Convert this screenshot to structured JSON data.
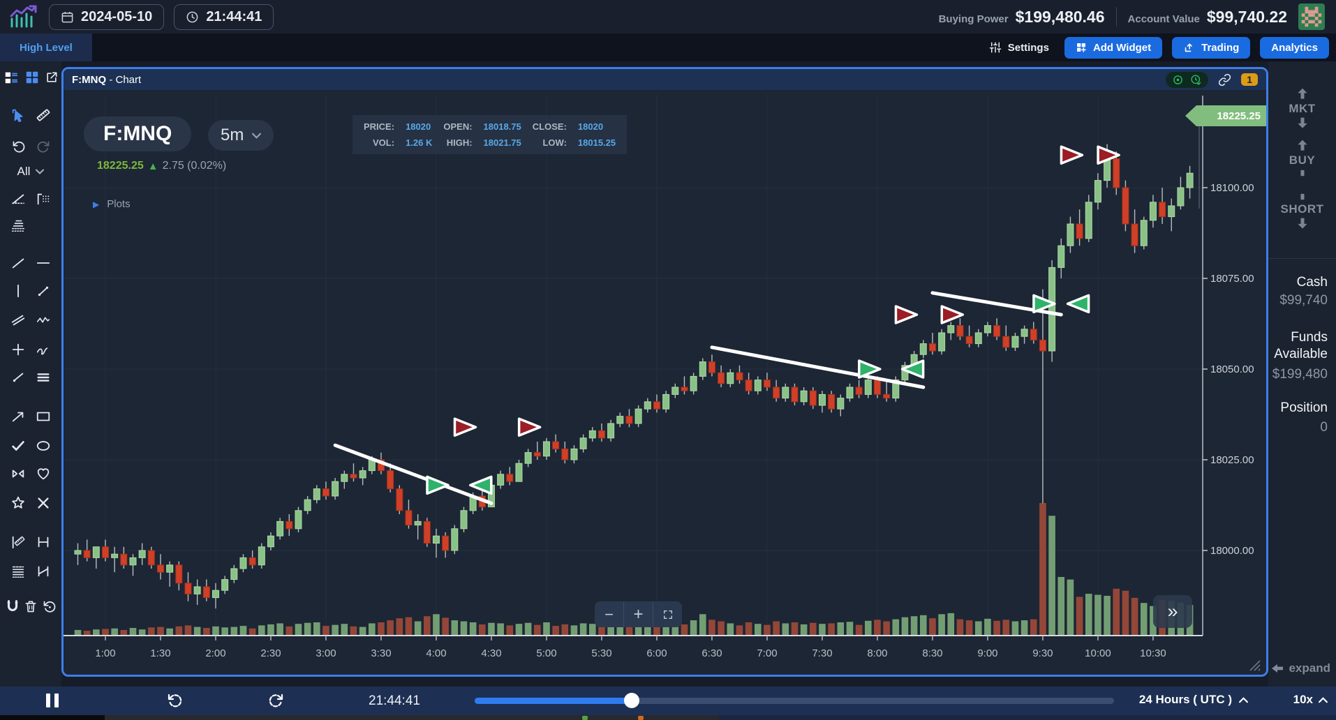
{
  "top_bar": {
    "date": "2024-05-10",
    "time": "21:44:41",
    "buying_power_label": "Buying Power",
    "buying_power": "$199,480.46",
    "account_value_label": "Account Value",
    "account_value": "$99,740.22"
  },
  "nav_bar": {
    "active_tab": "High Level",
    "settings_label": "Settings",
    "add_widget_label": "Add Widget",
    "trading_label": "Trading",
    "analytics_label": "Analytics"
  },
  "left_toolbar": {
    "filter_label": "All",
    "icons": [
      "layout-list-icon",
      "layout-grid-icon",
      "open-new-window-icon",
      "cursor-icon",
      "ruler-icon",
      "undo-icon",
      "redo-icon",
      "angle-line-icon",
      "column-pattern-icon",
      "line-stack-icon",
      "trend-line-icon",
      "horizontal-line-icon",
      "vertical-line-icon",
      "segment-icon",
      "parallel-lines-icon",
      "zigzag-icon",
      "cross-icon",
      "freehand-icon",
      "ray-icon",
      "menu-lines-icon",
      "arrow-icon",
      "rectangle-icon",
      "check-icon",
      "ellipse-icon",
      "flip-triangles-icon",
      "heart-icon",
      "star-icon",
      "close-icon",
      "measure-line-icon",
      "h-bracket-icon",
      "dashed-lines-icon",
      "corner-bracket-icon",
      "magnet-icon",
      "trash-icon",
      "rotate-reset-icon"
    ]
  },
  "chart_panel": {
    "title_symbol": "F:MNQ",
    "title_suffix": " - Chart",
    "badge": "1",
    "symbol": "F:MNQ",
    "timeframe": "5m",
    "last_price": "18225.25",
    "change": "2.75 (0.02%)",
    "up_arrow": "▲",
    "plots_label": "Plots",
    "plots_tri": "▶",
    "price_tag": "18225.25",
    "more_glyph": "»",
    "zoom_out": "−",
    "zoom_in": "+",
    "info": {
      "price_label": "PRICE:",
      "price": "18020",
      "open_label": "OPEN:",
      "open": "18018.75",
      "close_label": "CLOSE:",
      "close": "18020",
      "vol_label": "VOL:",
      "vol": "1.26 K",
      "high_label": "HIGH:",
      "high": "18021.75",
      "low_label": "LOW:",
      "low": "18015.25"
    }
  },
  "right_sidebar": {
    "mkt_label": "MKT",
    "buy_label": "BUY",
    "short_label": "SHORT",
    "cash_label": "Cash",
    "cash_value": "$99,740",
    "funds_label": "Funds Available",
    "funds_value": "$199,480",
    "position_label": "Position",
    "position_value": "0",
    "expand_label": "expand"
  },
  "playback_bar": {
    "time": "21:44:41",
    "range_label": "24 Hours ( UTC )",
    "speed_label": "10x",
    "progress_pct": 24.6
  },
  "colors": {
    "panel_border": "#3e7ee9",
    "accent_blue": "#1a6be0",
    "value_blue": "#58a8e8",
    "price_green": "#7db83c",
    "tag_green": "#81bd7e",
    "candle_up": "#8ac187",
    "candle_up_stroke": "#a9d9a3",
    "candle_down": "#d04028",
    "candle_down_stroke": "#a93018",
    "volume_up": "#7ba87a",
    "volume_down": "#9e4a38",
    "marker_red": "#9b1d26",
    "marker_green": "#2fb26b",
    "trendline": "#ffffff",
    "badge_orange": "#dc9c17"
  },
  "chart_data": {
    "type": "candlestick+volume",
    "symbol": "F:MNQ",
    "interval": "5m",
    "current_price": 18225.25,
    "y_axis": {
      "labels": [
        18100,
        18075,
        18050,
        18025,
        18000
      ],
      "format": "2dp"
    },
    "x_axis": {
      "labels": [
        "1:00",
        "1:30",
        "2:00",
        "2:30",
        "3:00",
        "3:30",
        "4:00",
        "4:30",
        "5:00",
        "5:30",
        "6:00",
        "6:30",
        "7:00",
        "7:30",
        "8:00",
        "8:30",
        "9:00",
        "9:30",
        "10:00",
        "10:30"
      ],
      "grid_hours": [
        "1:00",
        "2:00",
        "3:00",
        "4:00",
        "5:00",
        "6:00",
        "7:00",
        "8:00",
        "9:00",
        "10:00"
      ]
    },
    "candles": [
      [
        "0:45",
        17999,
        18002,
        17996,
        18000,
        110
      ],
      [
        "0:50",
        18000,
        18003,
        17997,
        17998,
        95
      ],
      [
        "0:55",
        17998,
        18001,
        17995,
        18001,
        120
      ],
      [
        "1:00",
        18001,
        18003,
        17997,
        17998,
        130
      ],
      [
        "1:05",
        17998,
        18001,
        17994,
        17999,
        140
      ],
      [
        "1:10",
        17999,
        18001,
        17995,
        17996,
        110
      ],
      [
        "1:15",
        17996,
        17999,
        17993,
        17998,
        150
      ],
      [
        "1:20",
        17998,
        18002,
        17996,
        18000,
        120
      ],
      [
        "1:25",
        18000,
        18001,
        17995,
        17996,
        160
      ],
      [
        "1:30",
        17996,
        17999,
        17992,
        17994,
        170
      ],
      [
        "1:35",
        17994,
        17997,
        17990,
        17996,
        140
      ],
      [
        "1:40",
        17996,
        17997,
        17989,
        17991,
        180
      ],
      [
        "1:45",
        17991,
        17994,
        17986,
        17988,
        200
      ],
      [
        "1:50",
        17988,
        17992,
        17985,
        17990,
        170
      ],
      [
        "1:55",
        17990,
        17992,
        17986,
        17987,
        150
      ],
      [
        "2:00",
        17987,
        17991,
        17984,
        17989,
        180
      ],
      [
        "2:05",
        17989,
        17993,
        17988,
        17992,
        160
      ],
      [
        "2:10",
        17992,
        17996,
        17991,
        17995,
        170
      ],
      [
        "2:15",
        17995,
        17999,
        17994,
        17998,
        190
      ],
      [
        "2:20",
        17998,
        18000,
        17995,
        17996,
        140
      ],
      [
        "2:25",
        17996,
        18002,
        17995,
        18001,
        200
      ],
      [
        "2:30",
        18001,
        18005,
        18000,
        18004,
        220
      ],
      [
        "2:35",
        18004,
        18009,
        18003,
        18008,
        240
      ],
      [
        "2:40",
        18008,
        18010,
        18004,
        18006,
        180
      ],
      [
        "2:45",
        18006,
        18012,
        18005,
        18011,
        230
      ],
      [
        "2:50",
        18011,
        18015,
        18010,
        18014,
        250
      ],
      [
        "2:55",
        18014,
        18018,
        18013,
        18017,
        260
      ],
      [
        "3:00",
        18017,
        18019,
        18014,
        18015,
        190
      ],
      [
        "3:05",
        18015,
        18020,
        18014,
        18019,
        210
      ],
      [
        "3:10",
        18019,
        18022,
        18017,
        18021,
        230
      ],
      [
        "3:15",
        18021,
        18024,
        18019,
        18020,
        180
      ],
      [
        "3:20",
        18020,
        18023,
        18018,
        18022,
        170
      ],
      [
        "3:25",
        18022,
        18026,
        18021,
        18025,
        240
      ],
      [
        "3:30",
        18025,
        18027,
        18021,
        18022,
        260
      ],
      [
        "3:35",
        18022,
        18024,
        18016,
        18017,
        300
      ],
      [
        "3:40",
        18017,
        18018,
        18010,
        18011,
        340
      ],
      [
        "3:45",
        18011,
        18014,
        18006,
        18007,
        360
      ],
      [
        "3:50",
        18007,
        18010,
        18003,
        18008,
        280
      ],
      [
        "3:55",
        18008,
        18009,
        18001,
        18002,
        380
      ],
      [
        "4:00",
        18002,
        18006,
        17998,
        18004,
        420
      ],
      [
        "4:05",
        18004,
        18005,
        17998,
        18000,
        350
      ],
      [
        "4:10",
        18000,
        18007,
        17999,
        18006,
        300
      ],
      [
        "4:15",
        18006,
        18012,
        18005,
        18011,
        280
      ],
      [
        "4:20",
        18011,
        18016,
        18010,
        18015,
        260
      ],
      [
        "4:25",
        18015,
        18017,
        18011,
        18012,
        220
      ],
      [
        "4:30",
        18012,
        18019,
        18012,
        18018,
        250
      ],
      [
        "4:35",
        18018,
        18022,
        18017,
        18021,
        240
      ],
      [
        "4:40",
        18021,
        18023,
        18018,
        18019,
        200
      ],
      [
        "4:45",
        18019,
        18025,
        18019,
        18024,
        230
      ],
      [
        "4:50",
        18024,
        18028,
        18023,
        18027,
        250
      ],
      [
        "4:55",
        18027,
        18030,
        18025,
        18026,
        210
      ],
      [
        "5:00",
        18026,
        18031,
        18025,
        18030,
        260
      ],
      [
        "5:05",
        18030,
        18032,
        18027,
        18028,
        190
      ],
      [
        "5:10",
        18028,
        18030,
        18024,
        18025,
        220
      ],
      [
        "5:15",
        18025,
        18029,
        18024,
        18028,
        200
      ],
      [
        "5:20",
        18028,
        18032,
        18027,
        18031,
        240
      ],
      [
        "5:25",
        18031,
        18034,
        18030,
        18033,
        230
      ],
      [
        "5:30",
        18033,
        18035,
        18030,
        18031,
        180
      ],
      [
        "5:35",
        18031,
        18036,
        18030,
        18035,
        250
      ],
      [
        "5:40",
        18035,
        18038,
        18034,
        18037,
        260
      ],
      [
        "5:45",
        18037,
        18039,
        18034,
        18035,
        200
      ],
      [
        "5:50",
        18035,
        18040,
        18034,
        18039,
        270
      ],
      [
        "5:55",
        18039,
        18042,
        18038,
        18041,
        280
      ],
      [
        "6:00",
        18041,
        18043,
        18038,
        18039,
        210
      ],
      [
        "6:05",
        18039,
        18044,
        18038,
        18043,
        260
      ],
      [
        "6:10",
        18043,
        18046,
        18042,
        18045,
        280
      ],
      [
        "6:15",
        18045,
        18048,
        18043,
        18044,
        220
      ],
      [
        "6:20",
        18044,
        18049,
        18043,
        18048,
        300
      ],
      [
        "6:25",
        18048,
        18053,
        18047,
        18052,
        420
      ],
      [
        "6:30",
        18052,
        18054,
        18048,
        18049,
        310
      ],
      [
        "6:35",
        18049,
        18051,
        18045,
        18046,
        280
      ],
      [
        "6:40",
        18046,
        18050,
        18045,
        18049,
        240
      ],
      [
        "6:45",
        18049,
        18051,
        18046,
        18047,
        200
      ],
      [
        "6:50",
        18047,
        18049,
        18043,
        18044,
        260
      ],
      [
        "6:55",
        18044,
        18048,
        18043,
        18047,
        230
      ],
      [
        "7:00",
        18047,
        18049,
        18044,
        18045,
        210
      ],
      [
        "7:05",
        18045,
        18047,
        18041,
        18042,
        280
      ],
      [
        "7:10",
        18042,
        18046,
        18041,
        18045,
        240
      ],
      [
        "7:15",
        18045,
        18046,
        18040,
        18041,
        260
      ],
      [
        "7:20",
        18041,
        18045,
        18040,
        18044,
        220
      ],
      [
        "7:25",
        18044,
        18045,
        18039,
        18040,
        250
      ],
      [
        "7:30",
        18040,
        18044,
        18038,
        18043,
        230
      ],
      [
        "7:35",
        18043,
        18044,
        18038,
        18039,
        240
      ],
      [
        "7:40",
        18039,
        18043,
        18037,
        18042,
        260
      ],
      [
        "7:45",
        18042,
        18046,
        18041,
        18045,
        270
      ],
      [
        "7:50",
        18045,
        18047,
        18042,
        18043,
        210
      ],
      [
        "7:55",
        18043,
        18048,
        18042,
        18047,
        290
      ],
      [
        "8:00",
        18047,
        18048,
        18042,
        18043,
        310
      ],
      [
        "8:05",
        18043,
        18047,
        18041,
        18042,
        280
      ],
      [
        "8:10",
        18042,
        18048,
        18041,
        18047,
        320
      ],
      [
        "8:15",
        18047,
        18052,
        18046,
        18051,
        360
      ],
      [
        "8:20",
        18051,
        18055,
        18050,
        18054,
        380
      ],
      [
        "8:25",
        18054,
        18058,
        18053,
        18057,
        400
      ],
      [
        "8:30",
        18057,
        18060,
        18054,
        18055,
        340
      ],
      [
        "8:35",
        18055,
        18061,
        18054,
        18060,
        420
      ],
      [
        "8:40",
        18060,
        18063,
        18058,
        18062,
        440
      ],
      [
        "8:45",
        18062,
        18064,
        18058,
        18059,
        320
      ],
      [
        "8:50",
        18059,
        18062,
        18056,
        18057,
        300
      ],
      [
        "8:55",
        18057,
        18061,
        18056,
        18060,
        280
      ],
      [
        "9:00",
        18060,
        18063,
        18059,
        18062,
        330
      ],
      [
        "9:05",
        18062,
        18064,
        18058,
        18059,
        290
      ],
      [
        "9:10",
        18059,
        18062,
        18055,
        18056,
        310
      ],
      [
        "9:15",
        18056,
        18060,
        18055,
        18059,
        280
      ],
      [
        "9:20",
        18059,
        18062,
        18057,
        18061,
        300
      ],
      [
        "9:25",
        18061,
        18063,
        18057,
        18058,
        320
      ],
      [
        "9:30",
        18058,
        18072,
        18013,
        18055,
        2600
      ],
      [
        "9:35",
        18055,
        18080,
        18052,
        18078,
        2350
      ],
      [
        "9:40",
        18078,
        18086,
        18075,
        18084,
        1150
      ],
      [
        "9:45",
        18084,
        18092,
        18082,
        18090,
        1100
      ],
      [
        "9:50",
        18090,
        18094,
        18084,
        18086,
        760
      ],
      [
        "9:55",
        18086,
        18098,
        18085,
        18096,
        820
      ],
      [
        "10:00",
        18096,
        18104,
        18094,
        18102,
        800
      ],
      [
        "10:05",
        18102,
        18112,
        18100,
        18108,
        780
      ],
      [
        "10:10",
        18108,
        18110,
        18098,
        18100,
        920
      ],
      [
        "10:15",
        18100,
        18102,
        18088,
        18090,
        880
      ],
      [
        "10:20",
        18090,
        18094,
        18082,
        18084,
        740
      ],
      [
        "10:25",
        18084,
        18092,
        18083,
        18091,
        640
      ],
      [
        "10:30",
        18091,
        18098,
        18089,
        18096,
        580
      ],
      [
        "10:35",
        18096,
        18100,
        18090,
        18092,
        700
      ],
      [
        "10:40",
        18092,
        18097,
        18088,
        18095,
        680
      ],
      [
        "10:45",
        18095,
        18103,
        18094,
        18100,
        650
      ],
      [
        "10:50",
        18100,
        18106,
        18097,
        18104,
        600
      ]
    ],
    "markers": [
      {
        "time": "4:15",
        "price": 18034,
        "dir": "right",
        "color": "red"
      },
      {
        "time": "4:50",
        "price": 18034,
        "dir": "right",
        "color": "red"
      },
      {
        "time": "4:00",
        "price": 18018,
        "dir": "right",
        "color": "green"
      },
      {
        "time": "4:25",
        "price": 18018,
        "dir": "left",
        "color": "green"
      },
      {
        "time": "7:55",
        "price": 18050,
        "dir": "right",
        "color": "green"
      },
      {
        "time": "8:20",
        "price": 18050,
        "dir": "left",
        "color": "green"
      },
      {
        "time": "8:15",
        "price": 18065,
        "dir": "right",
        "color": "red"
      },
      {
        "time": "8:40",
        "price": 18065,
        "dir": "right",
        "color": "red"
      },
      {
        "time": "9:30",
        "price": 18068,
        "dir": "right",
        "color": "green"
      },
      {
        "time": "9:50",
        "price": 18068,
        "dir": "left",
        "color": "green"
      },
      {
        "time": "9:45",
        "price": 18109,
        "dir": "right",
        "color": "red"
      },
      {
        "time": "10:05",
        "price": 18109,
        "dir": "right",
        "color": "red"
      }
    ],
    "trendlines": [
      {
        "from": [
          "3:05",
          18029
        ],
        "to": [
          "4:30",
          18013
        ]
      },
      {
        "from": [
          "6:30",
          18056
        ],
        "to": [
          "8:25",
          18045
        ]
      },
      {
        "from": [
          "8:30",
          18071
        ],
        "to": [
          "9:40",
          18065
        ]
      }
    ]
  }
}
